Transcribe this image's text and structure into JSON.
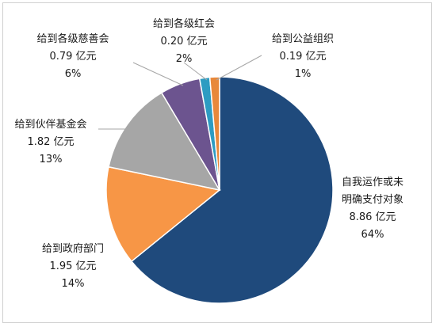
{
  "chart_data": {
    "type": "pie",
    "title": "",
    "unit": "亿元",
    "slices": [
      {
        "name_lines": [
          "自我运作或未",
          "明确支付对象"
        ],
        "value": 8.86,
        "value_label": "8.86 亿元",
        "percent": "64%",
        "color": "#1f4a7c"
      },
      {
        "name_lines": [
          "给到政府部门"
        ],
        "value": 1.95,
        "value_label": "1.95 亿元",
        "percent": "14%",
        "color": "#f79646"
      },
      {
        "name_lines": [
          "给到伙伴基金会"
        ],
        "value": 1.82,
        "value_label": "1.82 亿元",
        "percent": "13%",
        "color": "#a6a6a6"
      },
      {
        "name_lines": [
          "给到各级慈善会"
        ],
        "value": 0.79,
        "value_label": "0.79 亿元",
        "percent": "6%",
        "color": "#6c548f"
      },
      {
        "name_lines": [
          "给到各级红会"
        ],
        "value": 0.2,
        "value_label": "0.20 亿元",
        "percent": "2%",
        "color": "#2d9cc2"
      },
      {
        "name_lines": [
          "给到公益组织"
        ],
        "value": 0.19,
        "value_label": "0.19 亿元",
        "percent": "1%",
        "color": "#e8883a"
      }
    ]
  }
}
